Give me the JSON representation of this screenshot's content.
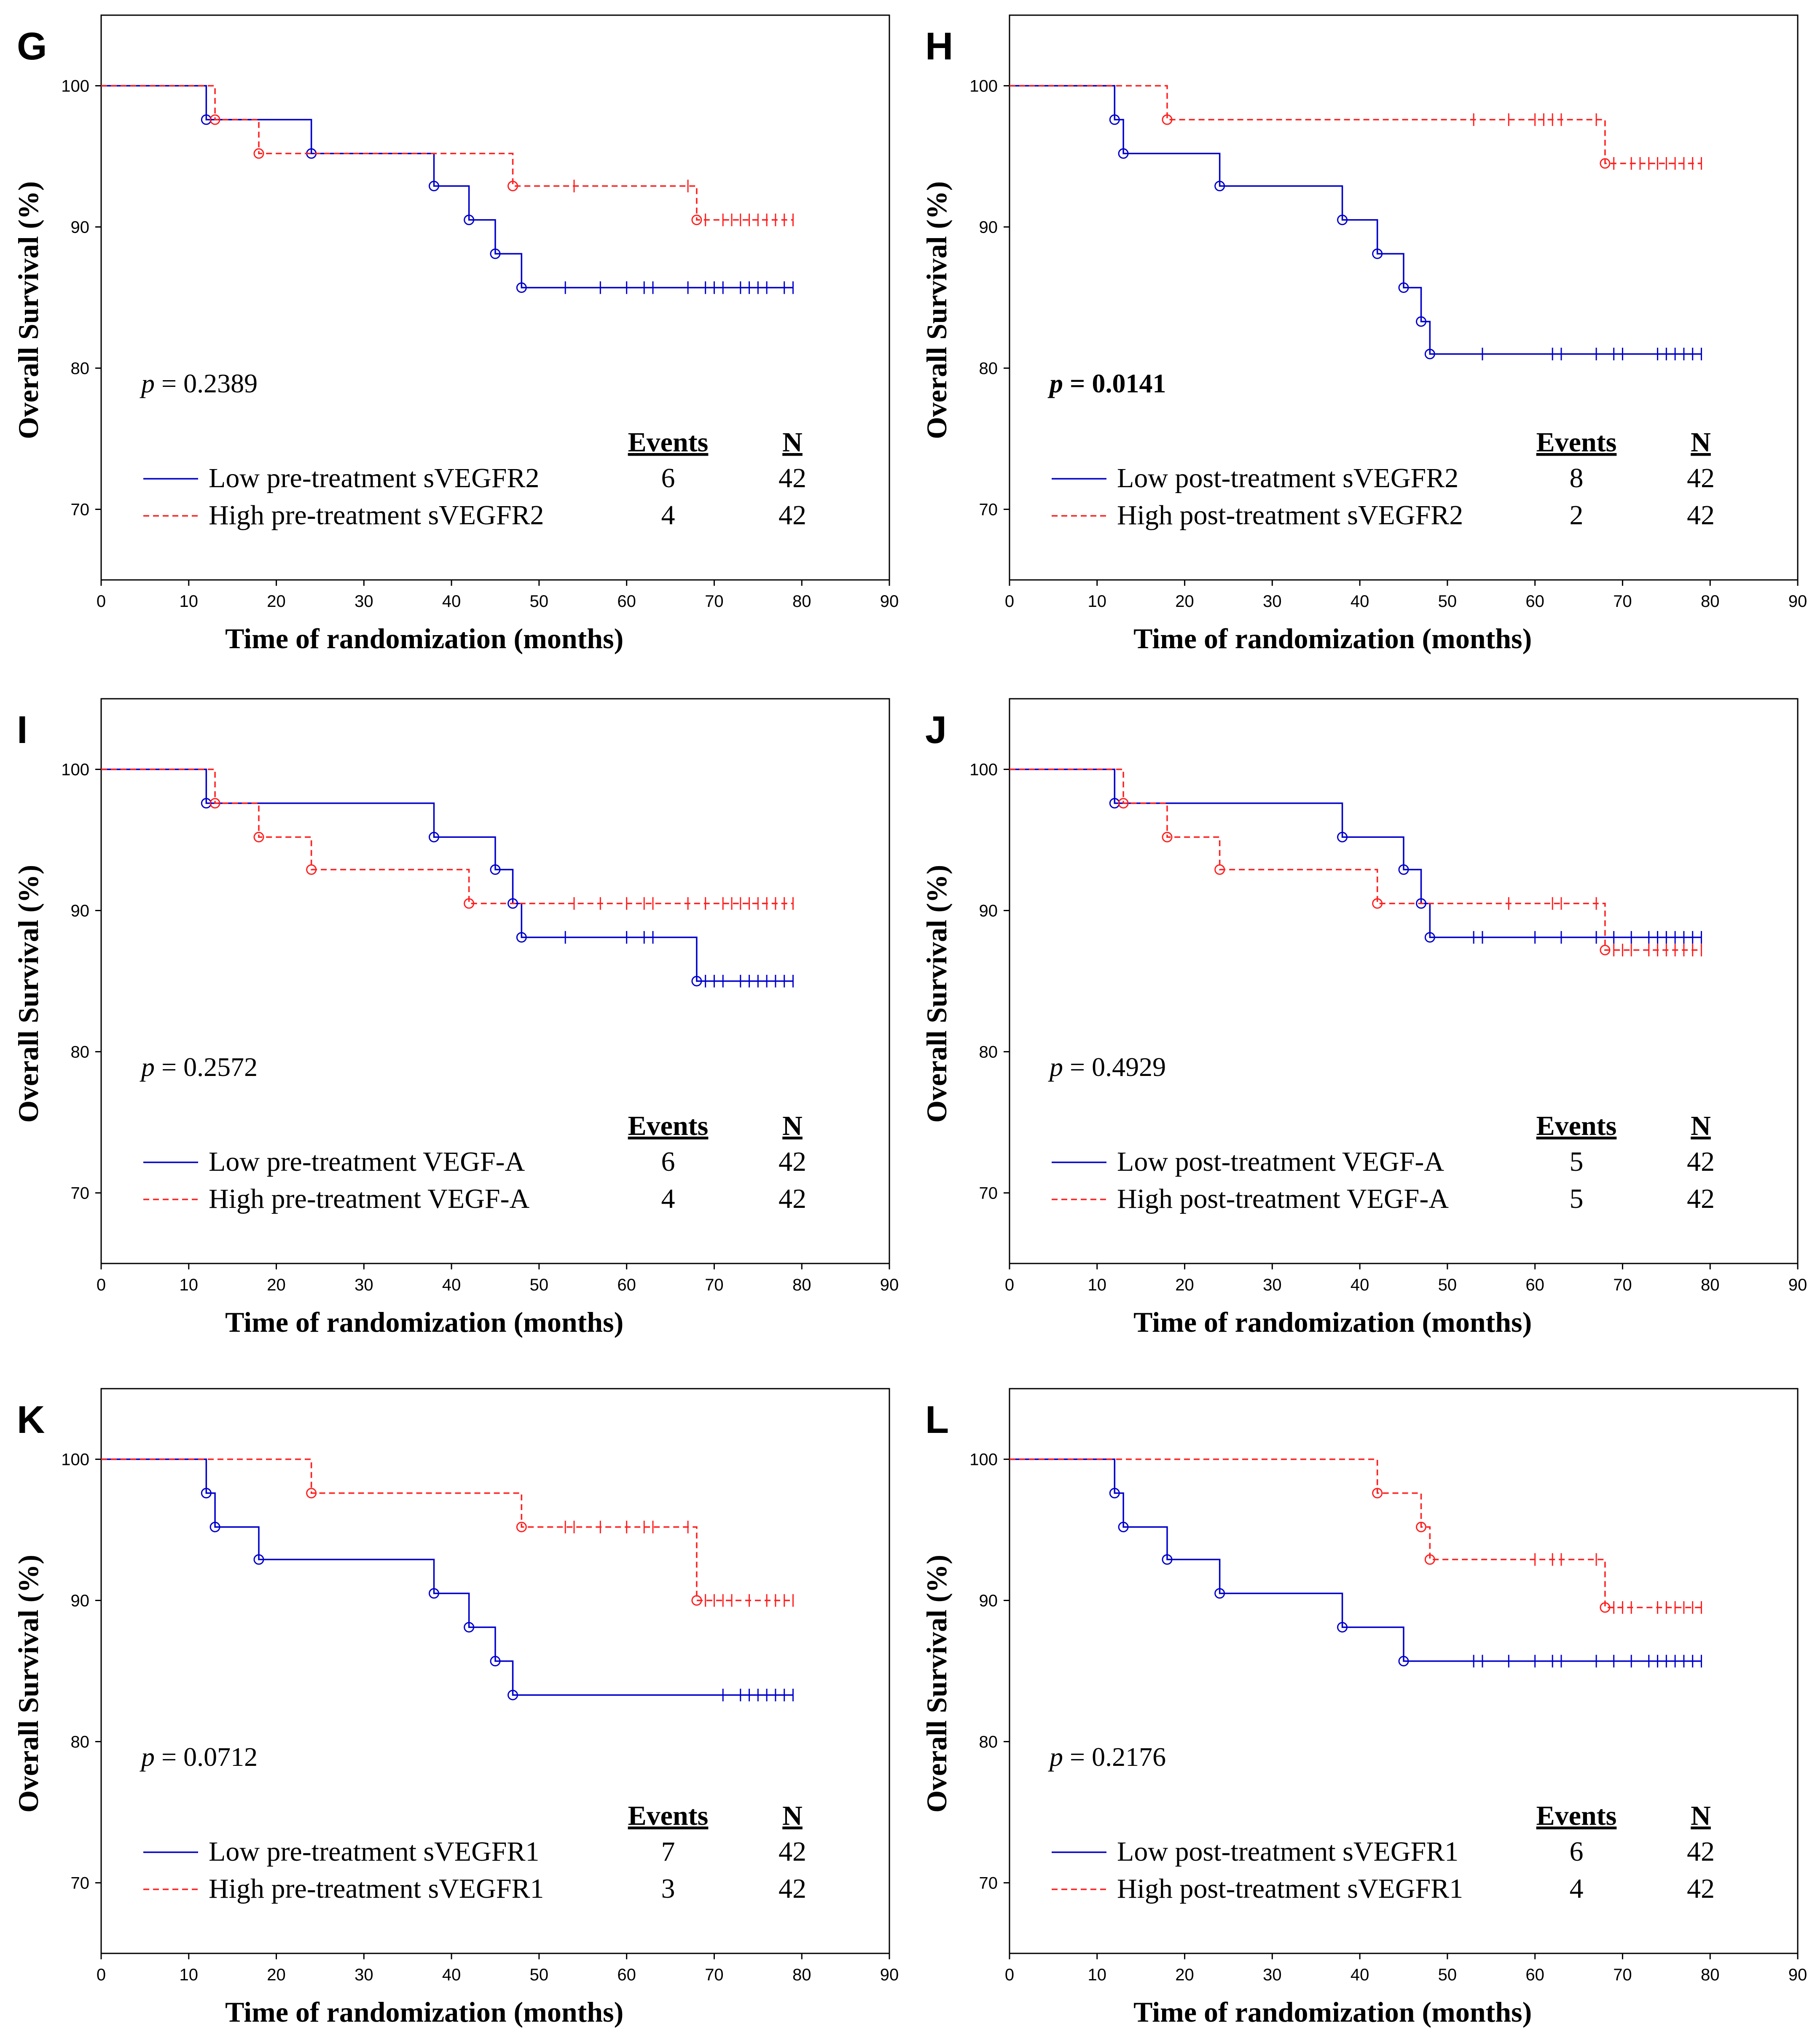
{
  "colors": {
    "low": "#0000cc",
    "high": "#ff2020",
    "frame": "#000000"
  },
  "chart_data": [
    {
      "type": "line",
      "panel": "G",
      "ylabel": "Overall Survival (%)",
      "xlabel": "Time of randomization (months)",
      "xlim": [
        0,
        90
      ],
      "ylim": [
        65,
        105
      ],
      "x_ticks": [
        "0",
        "10",
        "20",
        "30",
        "40",
        "50",
        "60",
        "70",
        "80",
        "90"
      ],
      "y_ticks": [
        "70",
        "80",
        "90",
        "100"
      ],
      "p_label": "p",
      "p_value": "= 0.2389",
      "p_bold": false,
      "legend_headers": {
        "events": "Events",
        "n": "N"
      },
      "series": [
        {
          "name": "Low pre-treatment sVEGFR2",
          "style": "solid",
          "events": "6",
          "n": "42",
          "steps": [
            [
              0,
              100
            ],
            [
              12,
              97.6
            ],
            [
              24,
              95.2
            ],
            [
              38,
              92.9
            ],
            [
              42,
              90.5
            ],
            [
              45,
              88.1
            ],
            [
              48,
              85.7
            ]
          ],
          "censor": [
            53,
            57,
            60,
            62,
            63,
            67,
            69,
            70,
            71,
            73,
            74,
            75,
            76,
            78,
            79
          ],
          "end": 79
        },
        {
          "name": "High pre-treatment sVEGFR2",
          "style": "dashed",
          "events": "4",
          "n": "42",
          "steps": [
            [
              0,
              100
            ],
            [
              13,
              97.6
            ],
            [
              18,
              95.2
            ],
            [
              47,
              92.9
            ],
            [
              68,
              90.5
            ]
          ],
          "censor": [
            54,
            67,
            69,
            71,
            72,
            73,
            74,
            75,
            76,
            77,
            78,
            79
          ],
          "end": 79
        }
      ]
    },
    {
      "type": "line",
      "panel": "H",
      "ylabel": "Overall Survival (%)",
      "xlabel": "Time of randomization (months)",
      "xlim": [
        0,
        90
      ],
      "ylim": [
        65,
        105
      ],
      "x_ticks": [
        "0",
        "10",
        "20",
        "30",
        "40",
        "50",
        "60",
        "70",
        "80",
        "90"
      ],
      "y_ticks": [
        "70",
        "80",
        "90",
        "100"
      ],
      "p_label": "p",
      "p_value": "= 0.0141",
      "p_bold": true,
      "legend_headers": {
        "events": "Events",
        "n": "N"
      },
      "series": [
        {
          "name": "Low post-treatment sVEGFR2",
          "style": "solid",
          "events": "8",
          "n": "42",
          "steps": [
            [
              0,
              100
            ],
            [
              12,
              97.6
            ],
            [
              13,
              95.2
            ],
            [
              24,
              92.9
            ],
            [
              38,
              90.5
            ],
            [
              42,
              88.1
            ],
            [
              45,
              85.7
            ],
            [
              47,
              83.3
            ],
            [
              48,
              81.0
            ]
          ],
          "censor": [
            54,
            62,
            63,
            67,
            69,
            70,
            74,
            75,
            76,
            77,
            78,
            79
          ],
          "end": 79
        },
        {
          "name": "High post-treatment sVEGFR2",
          "style": "dashed",
          "events": "2",
          "n": "42",
          "steps": [
            [
              0,
              100
            ],
            [
              18,
              97.6
            ],
            [
              68,
              94.5
            ]
          ],
          "censor": [
            53,
            57,
            60,
            61,
            62,
            63,
            67,
            69,
            71,
            72,
            73,
            74,
            75,
            76,
            77,
            78,
            79
          ],
          "end": 79
        }
      ]
    },
    {
      "type": "line",
      "panel": "I",
      "ylabel": "Overall Survival (%)",
      "xlabel": "Time of randomization (months)",
      "xlim": [
        0,
        90
      ],
      "ylim": [
        65,
        105
      ],
      "x_ticks": [
        "0",
        "10",
        "20",
        "30",
        "40",
        "50",
        "60",
        "70",
        "80",
        "90"
      ],
      "y_ticks": [
        "70",
        "80",
        "90",
        "100"
      ],
      "p_label": "p",
      "p_value": "= 0.2572",
      "p_bold": false,
      "legend_headers": {
        "events": "Events",
        "n": "N"
      },
      "series": [
        {
          "name": "Low pre-treatment VEGF-A",
          "style": "solid",
          "events": "6",
          "n": "42",
          "steps": [
            [
              0,
              100
            ],
            [
              12,
              97.6
            ],
            [
              38,
              95.2
            ],
            [
              45,
              92.9
            ],
            [
              47,
              90.5
            ],
            [
              48,
              88.1
            ],
            [
              68,
              85.0
            ]
          ],
          "censor": [
            53,
            60,
            62,
            63,
            69,
            70,
            71,
            73,
            74,
            75,
            76,
            77,
            78,
            79
          ],
          "end": 79
        },
        {
          "name": "High pre-treatment VEGF-A",
          "style": "dashed",
          "events": "4",
          "n": "42",
          "steps": [
            [
              0,
              100
            ],
            [
              13,
              97.6
            ],
            [
              18,
              95.2
            ],
            [
              24,
              92.9
            ],
            [
              42,
              90.5
            ]
          ],
          "censor": [
            54,
            57,
            60,
            62,
            63,
            67,
            69,
            71,
            72,
            73,
            74,
            75,
            76,
            77,
            78,
            79
          ],
          "end": 79
        }
      ]
    },
    {
      "type": "line",
      "panel": "J",
      "ylabel": "Overall Survival (%)",
      "xlabel": "Time of randomization (months)",
      "xlim": [
        0,
        90
      ],
      "ylim": [
        65,
        105
      ],
      "x_ticks": [
        "0",
        "10",
        "20",
        "30",
        "40",
        "50",
        "60",
        "70",
        "80",
        "90"
      ],
      "y_ticks": [
        "70",
        "80",
        "90",
        "100"
      ],
      "p_label": "p",
      "p_value": "= 0.4929",
      "p_bold": false,
      "legend_headers": {
        "events": "Events",
        "n": "N"
      },
      "series": [
        {
          "name": "Low post-treatment VEGF-A",
          "style": "solid",
          "events": "5",
          "n": "42",
          "steps": [
            [
              0,
              100
            ],
            [
              12,
              97.6
            ],
            [
              38,
              95.2
            ],
            [
              45,
              92.9
            ],
            [
              47,
              90.5
            ],
            [
              48,
              88.1
            ]
          ],
          "censor": [
            53,
            54,
            60,
            63,
            67,
            69,
            71,
            73,
            74,
            75,
            76,
            77,
            78,
            79
          ],
          "end": 79
        },
        {
          "name": "High post-treatment VEGF-A",
          "style": "dashed",
          "events": "5",
          "n": "42",
          "steps": [
            [
              0,
              100
            ],
            [
              13,
              97.6
            ],
            [
              18,
              95.2
            ],
            [
              24,
              92.9
            ],
            [
              42,
              90.5
            ],
            [
              68,
              87.2
            ]
          ],
          "censor": [
            57,
            62,
            63,
            67,
            69,
            70,
            71,
            73,
            74,
            75,
            76,
            77,
            78,
            79
          ],
          "end": 79
        }
      ]
    },
    {
      "type": "line",
      "panel": "K",
      "ylabel": "Overall Survival (%)",
      "xlabel": "Time of randomization (months)",
      "xlim": [
        0,
        90
      ],
      "ylim": [
        65,
        105
      ],
      "x_ticks": [
        "0",
        "10",
        "20",
        "30",
        "40",
        "50",
        "60",
        "70",
        "80",
        "90"
      ],
      "y_ticks": [
        "70",
        "80",
        "90",
        "100"
      ],
      "p_label": "p",
      "p_value": "= 0.0712",
      "p_bold": false,
      "legend_headers": {
        "events": "Events",
        "n": "N"
      },
      "series": [
        {
          "name": "Low pre-treatment sVEGFR1",
          "style": "solid",
          "events": "7",
          "n": "42",
          "steps": [
            [
              0,
              100
            ],
            [
              12,
              97.6
            ],
            [
              13,
              95.2
            ],
            [
              18,
              92.9
            ],
            [
              38,
              90.5
            ],
            [
              42,
              88.1
            ],
            [
              45,
              85.7
            ],
            [
              47,
              83.3
            ]
          ],
          "censor": [
            71,
            73,
            74,
            75,
            76,
            77,
            78,
            79
          ],
          "end": 79
        },
        {
          "name": "High pre-treatment sVEGFR1",
          "style": "dashed",
          "events": "3",
          "n": "42",
          "steps": [
            [
              0,
              100
            ],
            [
              24,
              97.6
            ],
            [
              48,
              95.2
            ],
            [
              68,
              90.0
            ]
          ],
          "censor": [
            53,
            54,
            57,
            60,
            62,
            63,
            67,
            69,
            70,
            71,
            72,
            74,
            76,
            77,
            78,
            79
          ],
          "end": 79
        }
      ]
    },
    {
      "type": "line",
      "panel": "L",
      "ylabel": "Overall Survival (%)",
      "xlabel": "Time of randomization (months)",
      "xlim": [
        0,
        90
      ],
      "ylim": [
        65,
        105
      ],
      "x_ticks": [
        "0",
        "10",
        "20",
        "30",
        "40",
        "50",
        "60",
        "70",
        "80",
        "90"
      ],
      "y_ticks": [
        "70",
        "80",
        "90",
        "100"
      ],
      "p_label": "p",
      "p_value": "= 0.2176",
      "p_bold": false,
      "legend_headers": {
        "events": "Events",
        "n": "N"
      },
      "series": [
        {
          "name": "Low post-treatment sVEGFR1",
          "style": "solid",
          "events": "6",
          "n": "42",
          "steps": [
            [
              0,
              100
            ],
            [
              12,
              97.6
            ],
            [
              13,
              95.2
            ],
            [
              18,
              92.9
            ],
            [
              24,
              90.5
            ],
            [
              38,
              88.1
            ],
            [
              45,
              85.7
            ]
          ],
          "censor": [
            53,
            54,
            57,
            60,
            62,
            63,
            67,
            69,
            71,
            73,
            74,
            75,
            76,
            77,
            78,
            79
          ],
          "end": 79
        },
        {
          "name": "High post-treatment sVEGFR1",
          "style": "dashed",
          "events": "4",
          "n": "42",
          "steps": [
            [
              0,
              100
            ],
            [
              42,
              97.6
            ],
            [
              47,
              95.2
            ],
            [
              48,
              92.9
            ],
            [
              68,
              89.5
            ]
          ],
          "censor": [
            60,
            62,
            63,
            67,
            69,
            70,
            71,
            74,
            75,
            76,
            77,
            78,
            79
          ],
          "end": 79
        }
      ]
    }
  ]
}
